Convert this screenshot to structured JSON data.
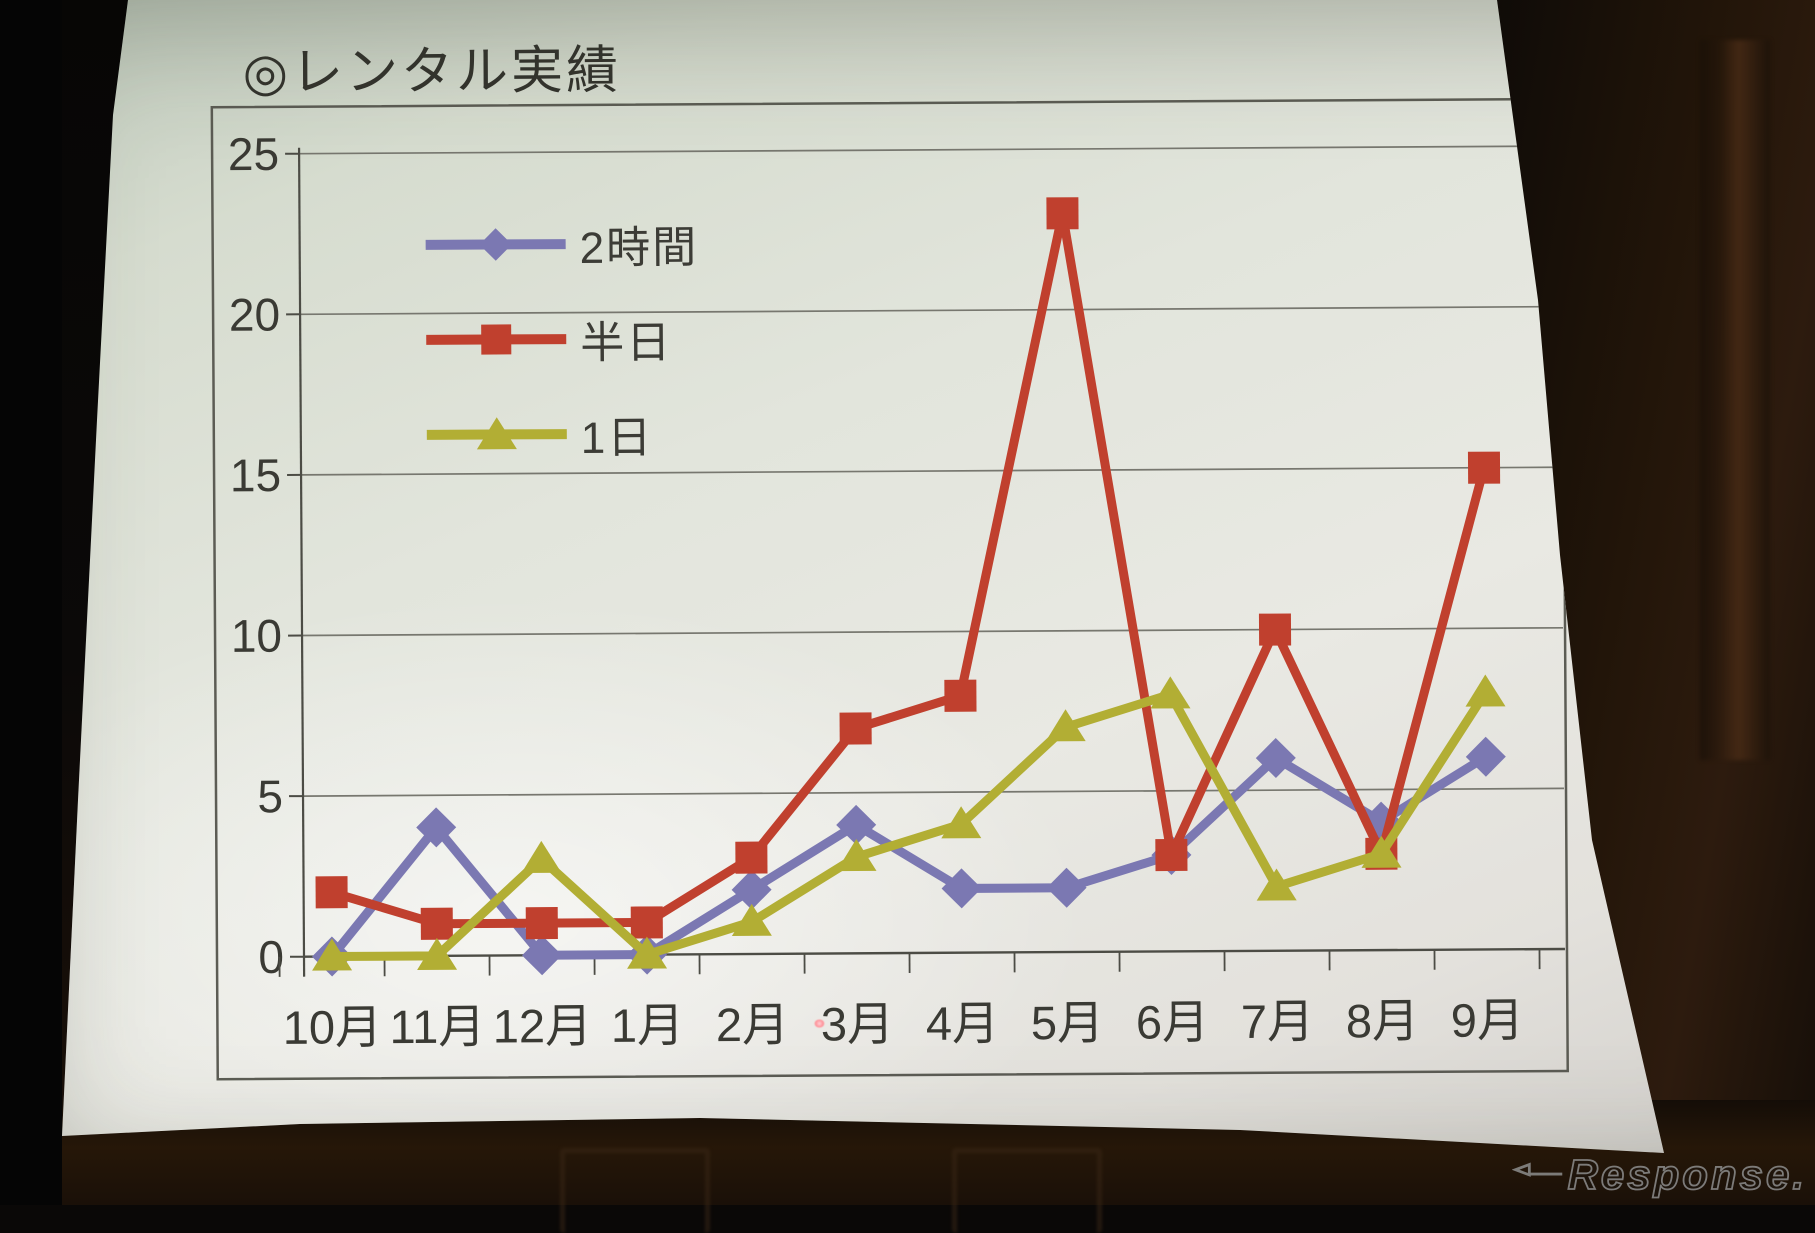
{
  "slide": {
    "title": "◎レンタル実績"
  },
  "watermark": {
    "label": "Response."
  },
  "chart_data": {
    "type": "line",
    "title": "◎レンタル実績",
    "categories": [
      "10月",
      "11月",
      "12月",
      "1月",
      "2月",
      "3月",
      "4月",
      "5月",
      "6月",
      "7月",
      "8月",
      "9月"
    ],
    "series": [
      {
        "name": "2時間",
        "marker": "diamond",
        "color": "#7b78b2",
        "values": [
          0,
          4,
          0,
          0,
          2,
          4,
          2,
          2,
          3,
          6,
          4,
          6
        ]
      },
      {
        "name": "半日",
        "marker": "square",
        "color": "#c0402e",
        "values": [
          2,
          1,
          1,
          1,
          3,
          7,
          8,
          23,
          3,
          10,
          3,
          15
        ]
      },
      {
        "name": "1日",
        "marker": "triangle",
        "color": "#b2ae34",
        "values": [
          0,
          0,
          3,
          0,
          1,
          3,
          4,
          7,
          8,
          2,
          3,
          8
        ]
      }
    ],
    "ylim": [
      0,
      25
    ],
    "y_ticks": [
      0,
      5,
      10,
      15,
      20,
      25
    ],
    "xlabel": "",
    "ylabel": "",
    "grid": true,
    "legend_position": "upper-left-inside",
    "axis_text_color": "#3a3a34",
    "gridline_color": "#77776f"
  }
}
